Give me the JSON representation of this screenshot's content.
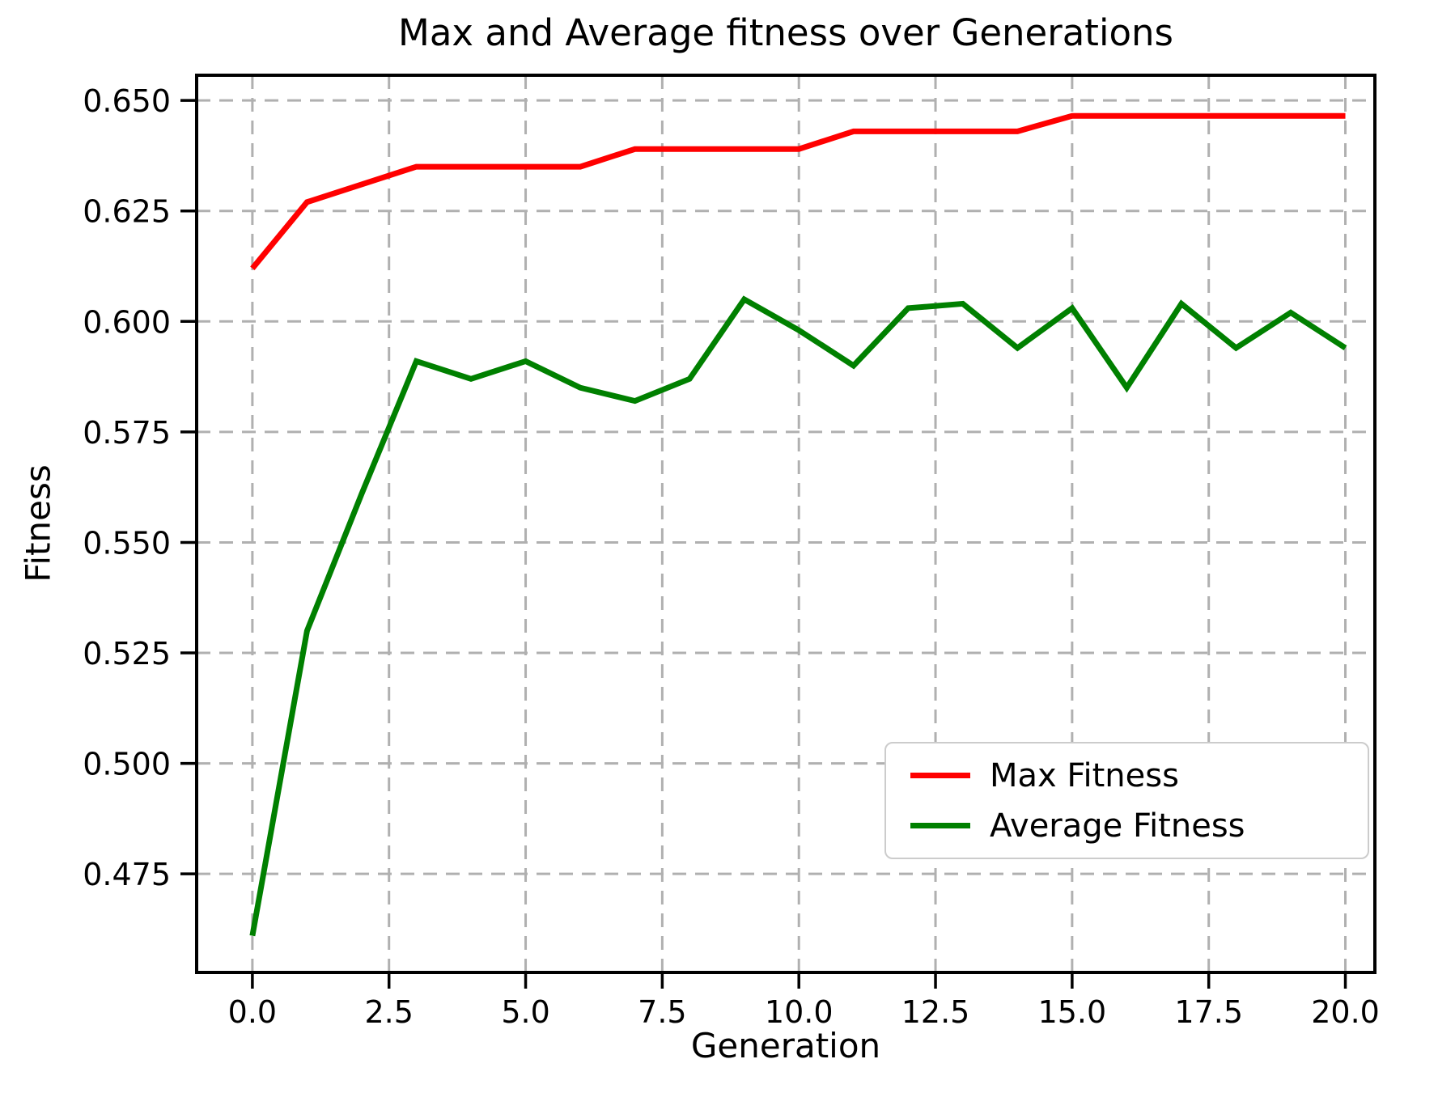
{
  "chart_data": {
    "type": "line",
    "title": "Max and Average fitness over Generations",
    "xlabel": "Generation",
    "ylabel": "Fitness",
    "x": [
      0,
      1,
      2,
      3,
      4,
      5,
      6,
      7,
      8,
      9,
      10,
      11,
      12,
      13,
      14,
      15,
      16,
      17,
      18,
      19,
      20
    ],
    "series": [
      {
        "name": "Max Fitness",
        "color": "#ff0000",
        "values": [
          0.612,
          0.627,
          0.631,
          0.635,
          0.635,
          0.635,
          0.635,
          0.639,
          0.639,
          0.639,
          0.639,
          0.643,
          0.643,
          0.643,
          0.643,
          0.6465,
          0.6465,
          0.6465,
          0.6465,
          0.6465,
          0.6465
        ]
      },
      {
        "name": "Average Fitness",
        "color": "#008000",
        "values": [
          0.461,
          0.53,
          0.561,
          0.591,
          0.587,
          0.591,
          0.585,
          0.582,
          0.587,
          0.605,
          0.598,
          0.59,
          0.603,
          0.604,
          0.594,
          0.603,
          0.585,
          0.604,
          0.594,
          0.602,
          0.594
        ]
      }
    ],
    "xticks": {
      "values": [
        0,
        2.5,
        5,
        7.5,
        10,
        12.5,
        15,
        17.5,
        20
      ],
      "labels": [
        "0.0",
        "2.5",
        "5.0",
        "7.5",
        "10.0",
        "12.5",
        "15.0",
        "17.5",
        "20.0"
      ]
    },
    "yticks": {
      "values": [
        0.475,
        0.5,
        0.525,
        0.55,
        0.575,
        0.6,
        0.625,
        0.65
      ],
      "labels": [
        "0.475",
        "0.500",
        "0.525",
        "0.550",
        "0.575",
        "0.600",
        "0.625",
        "0.650"
      ]
    },
    "xlim": [
      -1.02,
      20.54
    ],
    "ylim": [
      0.4527,
      0.6557
    ],
    "grid": true,
    "grid_color": "#b0b0b0",
    "legend": {
      "position": "lower right",
      "entries": [
        "Max Fitness",
        "Average Fitness"
      ]
    }
  }
}
